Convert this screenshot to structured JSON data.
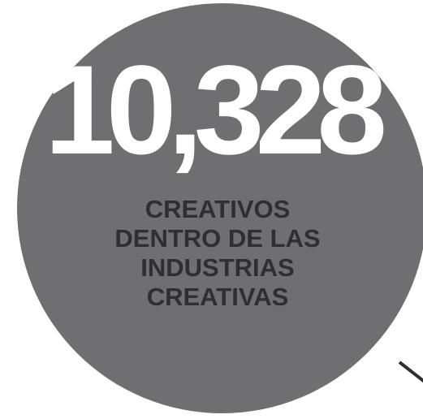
{
  "stat": {
    "number": "10,328",
    "caption_lines": [
      "CREATIVOS",
      "DENTRO DE LAS",
      "INDUSTRIAS",
      "CREATIVAS"
    ]
  },
  "colors": {
    "circle": "#6f6e70",
    "number": "#ffffff",
    "caption": "#2e2e33",
    "background": "#ffffff"
  }
}
